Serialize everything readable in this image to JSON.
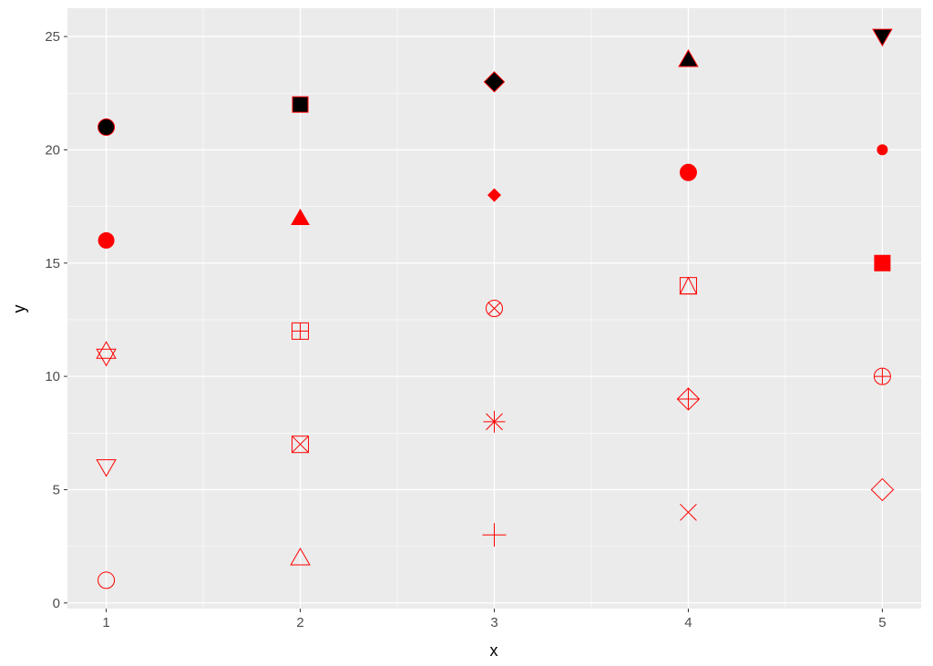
{
  "chart_data": {
    "type": "scatter",
    "title": "",
    "xlabel": "x",
    "ylabel": "y",
    "xlim": [
      0.8,
      5.2
    ],
    "ylim": [
      -0.25,
      26.25
    ],
    "x_ticks": [
      1,
      2,
      3,
      4,
      5
    ],
    "y_ticks": [
      0,
      5,
      10,
      15,
      20,
      25
    ],
    "grid": true,
    "panel_background": "#ebebeb",
    "grid_color": "#ffffff",
    "colour": "#ff0000",
    "fill": "#000000",
    "points": [
      {
        "x": 1,
        "y": 1,
        "shape": 1
      },
      {
        "x": 2,
        "y": 2,
        "shape": 2
      },
      {
        "x": 3,
        "y": 3,
        "shape": 3
      },
      {
        "x": 4,
        "y": 4,
        "shape": 4
      },
      {
        "x": 5,
        "y": 5,
        "shape": 5
      },
      {
        "x": 1,
        "y": 6,
        "shape": 6
      },
      {
        "x": 2,
        "y": 7,
        "shape": 7
      },
      {
        "x": 3,
        "y": 8,
        "shape": 8
      },
      {
        "x": 4,
        "y": 9,
        "shape": 9
      },
      {
        "x": 5,
        "y": 10,
        "shape": 10
      },
      {
        "x": 1,
        "y": 11,
        "shape": 11
      },
      {
        "x": 2,
        "y": 12,
        "shape": 12
      },
      {
        "x": 3,
        "y": 13,
        "shape": 13
      },
      {
        "x": 4,
        "y": 14,
        "shape": 14
      },
      {
        "x": 5,
        "y": 15,
        "shape": 15
      },
      {
        "x": 1,
        "y": 16,
        "shape": 16
      },
      {
        "x": 2,
        "y": 17,
        "shape": 17
      },
      {
        "x": 3,
        "y": 18,
        "shape": 18
      },
      {
        "x": 4,
        "y": 19,
        "shape": 19
      },
      {
        "x": 5,
        "y": 20,
        "shape": 20
      },
      {
        "x": 1,
        "y": 21,
        "shape": 21
      },
      {
        "x": 2,
        "y": 22,
        "shape": 22
      },
      {
        "x": 3,
        "y": 23,
        "shape": 23
      },
      {
        "x": 4,
        "y": 24,
        "shape": 24
      },
      {
        "x": 5,
        "y": 25,
        "shape": 25
      }
    ]
  }
}
